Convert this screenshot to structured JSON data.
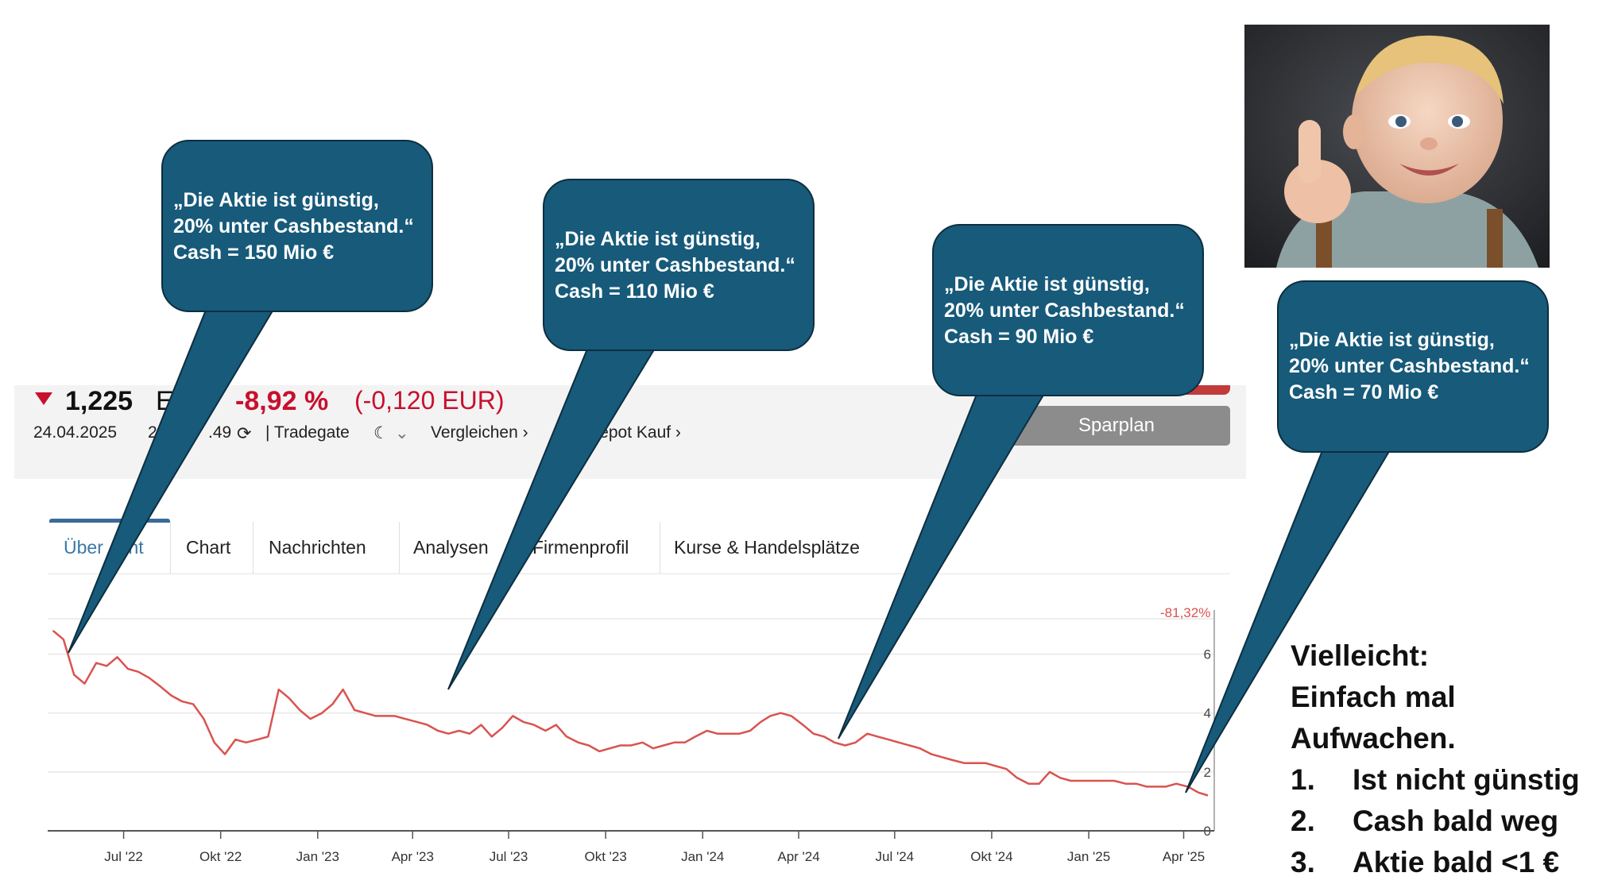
{
  "quote": {
    "price": "1,225",
    "currency": "E",
    "change_pct": "-8,92 %",
    "change_abs": "(-0,120 EUR)",
    "date": "24.04.2025",
    "time": "2",
    "time2": ".49",
    "exchange": "| Tradegate",
    "compare": "Vergleichen ›",
    "depot": "terdepot Kauf ›",
    "sparplan": "Sparplan",
    "accent_color": "#c8102e"
  },
  "tabs": [
    {
      "label": "Über",
      "label2": "cht",
      "active": true
    },
    {
      "label": "Chart"
    },
    {
      "label": "Nachrichten"
    },
    {
      "label": "Analysen"
    },
    {
      "label": "Firmenprofil"
    },
    {
      "label": "Kurse & Handelsplätze"
    }
  ],
  "bubbles": [
    {
      "text": "„Die Aktie ist günstig,\n20% unter Cashbestand.“\nCash = 150 Mio €"
    },
    {
      "text": "„Die Aktie ist günstig,\n20% unter Cashbestand.“\nCash = 110 Mio €"
    },
    {
      "text": "„Die Aktie ist günstig,\n20% unter Cashbestand.“\nCash = 90 Mio €"
    },
    {
      "text": "„Die Aktie ist günstig,\n20% unter Cashbestand.“\nCash = 70 Mio €"
    }
  ],
  "bubble_color": "#175a7a",
  "side": {
    "lines": [
      "Vielleicht:",
      "Einfach mal",
      "Aufwachen."
    ],
    "list": [
      {
        "num": "1.",
        "text": "Ist nicht günstig"
      },
      {
        "num": "2.",
        "text": "Cash bald weg"
      },
      {
        "num": "3.",
        "text": "Aktie bald <1 €"
      }
    ]
  },
  "chart_data": {
    "type": "line",
    "perf_label": "-81,32%",
    "line_color": "#d9534f",
    "x_ticks": [
      "Jul '22",
      "Okt '22",
      "Jan '23",
      "Apr '23",
      "Jul '23",
      "Okt '23",
      "Jan '24",
      "Apr '24",
      "Jul '24",
      "Okt '24",
      "Jan '25",
      "Apr '25"
    ],
    "y_ticks": [
      0,
      2,
      4,
      6
    ],
    "ylim": [
      0,
      7.5
    ],
    "grid": true,
    "series": [
      {
        "x": [
          "2022-04-25",
          "2022-05-05",
          "2022-05-15",
          "2022-05-25",
          "2022-06-05",
          "2022-06-15",
          "2022-06-25",
          "2022-07-05",
          "2022-07-15",
          "2022-07-25",
          "2022-08-05",
          "2022-08-15",
          "2022-08-25",
          "2022-09-05",
          "2022-09-15",
          "2022-09-25",
          "2022-10-05",
          "2022-10-15",
          "2022-10-25",
          "2022-11-05",
          "2022-11-15",
          "2022-11-25",
          "2022-12-05",
          "2022-12-15",
          "2022-12-25",
          "2023-01-05",
          "2023-01-15",
          "2023-01-25",
          "2023-02-05",
          "2023-02-15",
          "2023-02-25",
          "2023-03-05",
          "2023-03-15",
          "2023-03-25",
          "2023-04-05",
          "2023-04-15",
          "2023-04-25",
          "2023-05-05",
          "2023-05-15",
          "2023-05-25",
          "2023-06-05",
          "2023-06-15",
          "2023-06-25",
          "2023-07-05",
          "2023-07-15",
          "2023-07-25",
          "2023-08-05",
          "2023-08-15",
          "2023-08-25",
          "2023-09-05",
          "2023-09-15",
          "2023-09-25",
          "2023-10-05",
          "2023-10-15",
          "2023-10-25",
          "2023-11-05",
          "2023-11-15",
          "2023-11-25",
          "2023-12-05",
          "2023-12-15",
          "2023-12-25",
          "2024-01-05",
          "2024-01-15",
          "2024-01-25",
          "2024-02-05",
          "2024-02-15",
          "2024-02-25",
          "2024-03-05",
          "2024-03-15",
          "2024-03-25",
          "2024-04-05",
          "2024-04-15",
          "2024-04-25",
          "2024-05-05",
          "2024-05-15",
          "2024-05-25",
          "2024-06-05",
          "2024-06-15",
          "2024-06-25",
          "2024-07-05",
          "2024-07-15",
          "2024-07-25",
          "2024-08-05",
          "2024-08-15",
          "2024-08-25",
          "2024-09-05",
          "2024-09-15",
          "2024-09-25",
          "2024-10-05",
          "2024-10-15",
          "2024-10-25",
          "2024-11-05",
          "2024-11-15",
          "2024-11-25",
          "2024-12-05",
          "2024-12-15",
          "2024-12-25",
          "2025-01-05",
          "2025-01-15",
          "2025-01-25",
          "2025-02-05",
          "2025-02-15",
          "2025-02-25",
          "2025-03-05",
          "2025-03-15",
          "2025-03-25",
          "2025-04-05",
          "2025-04-15",
          "2025-04-24"
        ],
        "values": [
          6.8,
          6.5,
          5.3,
          5.0,
          5.7,
          5.6,
          5.9,
          5.5,
          5.4,
          5.2,
          4.9,
          4.6,
          4.4,
          4.3,
          3.8,
          3.0,
          2.6,
          3.1,
          3.0,
          3.1,
          3.2,
          4.8,
          4.5,
          4.1,
          3.8,
          4.0,
          4.3,
          4.8,
          4.1,
          4.0,
          3.9,
          3.9,
          3.9,
          3.8,
          3.7,
          3.6,
          3.4,
          3.3,
          3.4,
          3.3,
          3.6,
          3.2,
          3.5,
          3.9,
          3.7,
          3.6,
          3.4,
          3.6,
          3.2,
          3.0,
          2.9,
          2.7,
          2.8,
          2.9,
          2.9,
          3.0,
          2.8,
          2.9,
          3.0,
          3.0,
          3.2,
          3.4,
          3.3,
          3.3,
          3.3,
          3.4,
          3.7,
          3.9,
          4.0,
          3.9,
          3.6,
          3.3,
          3.2,
          3.0,
          2.9,
          3.0,
          3.3,
          3.2,
          3.1,
          3.0,
          2.9,
          2.8,
          2.6,
          2.5,
          2.4,
          2.3,
          2.3,
          2.3,
          2.2,
          2.1,
          1.8,
          1.6,
          1.6,
          2.0,
          1.8,
          1.7,
          1.7,
          1.7,
          1.7,
          1.7,
          1.6,
          1.6,
          1.5,
          1.5,
          1.5,
          1.6,
          1.5,
          1.3,
          1.2
        ]
      }
    ]
  }
}
